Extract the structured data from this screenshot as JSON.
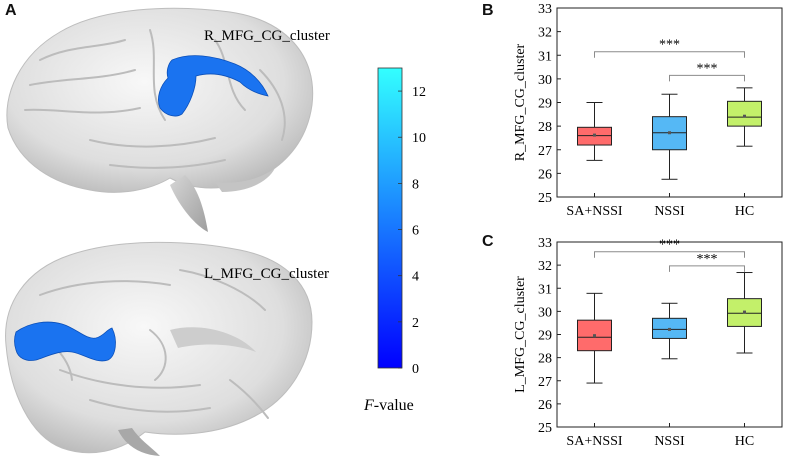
{
  "panel_labels": {
    "a": "A",
    "b": "B",
    "c": "C"
  },
  "brain": {
    "top_label": "R_MFG_CG_cluster",
    "bottom_label": "L_MFG_CG_cluster",
    "cluster_color": "#1a73f0",
    "cortex_color": "#e6e6e6"
  },
  "colorbar": {
    "ticks": [
      "12",
      "10",
      "8",
      "6",
      "4",
      "2",
      "0"
    ],
    "tick_values": [
      12,
      10,
      8,
      6,
      4,
      2,
      0
    ],
    "range": [
      0,
      13
    ],
    "label_italic": "F",
    "label_rest": "-value",
    "color_low": "#0000ff",
    "color_high": "#33ffff"
  },
  "chart_data": [
    {
      "type": "box",
      "panel": "B",
      "ylabel": "R_MFG_CG_cluster",
      "categories": [
        "SA+NSSI",
        "NSSI",
        "HC"
      ],
      "colors": [
        "#ff6b6b",
        "#55b8f5",
        "#c3f06a"
      ],
      "ylim": [
        25,
        33
      ],
      "yticks": [
        25,
        26,
        27,
        28,
        29,
        30,
        31,
        32,
        33
      ],
      "boxes": [
        {
          "whisker_low": 26.55,
          "q1": 27.2,
          "median": 27.6,
          "mean": 27.62,
          "q3": 27.95,
          "whisker_high": 29.0
        },
        {
          "whisker_low": 25.75,
          "q1": 27.0,
          "median": 27.72,
          "mean": 27.72,
          "q3": 28.4,
          "whisker_high": 29.35
        },
        {
          "whisker_low": 27.15,
          "q1": 28.0,
          "median": 28.38,
          "mean": 28.42,
          "q3": 29.05,
          "whisker_high": 29.62
        }
      ],
      "brackets": [
        {
          "from": 0,
          "to": 2,
          "y": 31.15,
          "label": "***"
        },
        {
          "from": 1,
          "to": 2,
          "y": 30.15,
          "label": "***"
        }
      ]
    },
    {
      "type": "box",
      "panel": "C",
      "ylabel": "L_MFG_CG_cluster",
      "categories": [
        "SA+NSSI",
        "NSSI",
        "HC"
      ],
      "colors": [
        "#ff6b6b",
        "#55b8f5",
        "#c3f06a"
      ],
      "ylim": [
        25,
        33
      ],
      "yticks": [
        25,
        26,
        27,
        28,
        29,
        30,
        31,
        32,
        33
      ],
      "boxes": [
        {
          "whisker_low": 26.9,
          "q1": 28.3,
          "median": 28.88,
          "mean": 28.95,
          "q3": 29.62,
          "whisker_high": 30.78
        },
        {
          "whisker_low": 27.95,
          "q1": 28.83,
          "median": 29.22,
          "mean": 29.22,
          "q3": 29.7,
          "whisker_high": 30.35
        },
        {
          "whisker_low": 28.2,
          "q1": 29.35,
          "median": 29.92,
          "mean": 29.97,
          "q3": 30.55,
          "whisker_high": 31.68
        }
      ],
      "brackets": [
        {
          "from": 0,
          "to": 2,
          "y": 32.58,
          "label": "***"
        },
        {
          "from": 1,
          "to": 2,
          "y": 31.97,
          "label": "***"
        }
      ]
    }
  ]
}
